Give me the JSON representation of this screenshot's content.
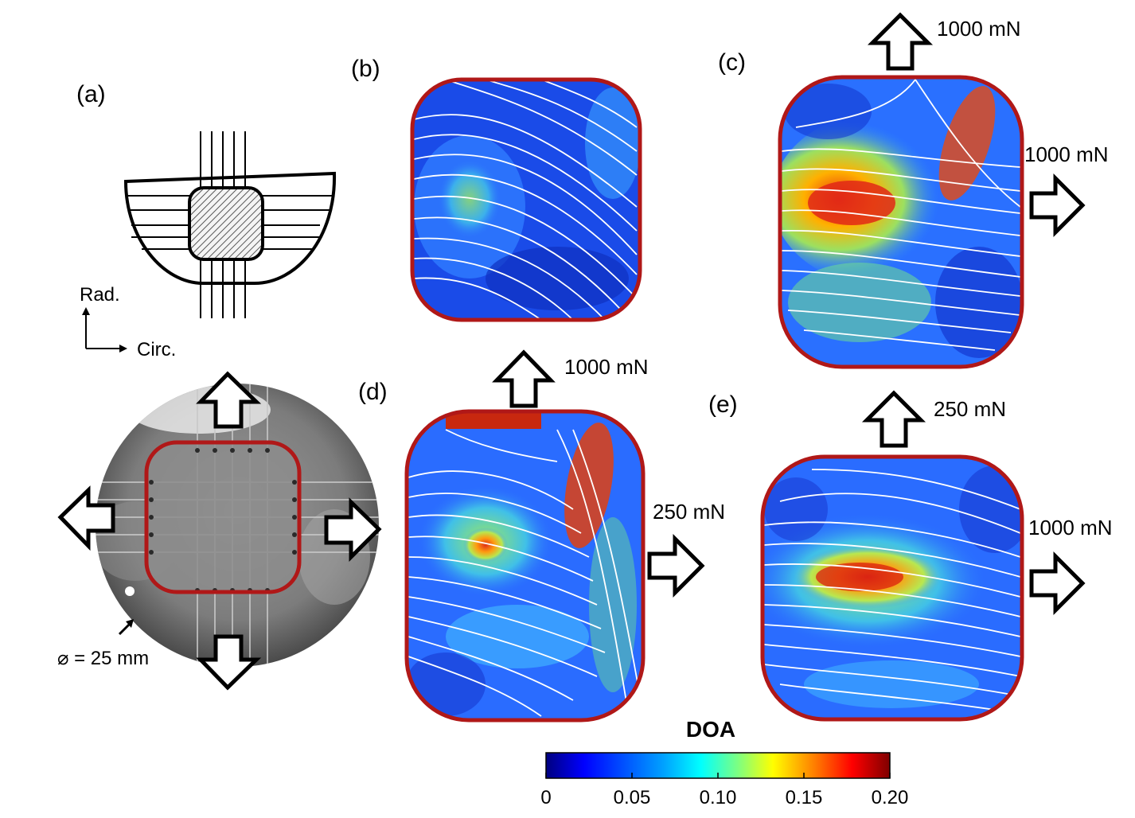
{
  "panels": {
    "a": {
      "label": "(a)",
      "axis_radial": "Rad.",
      "axis_circ": "Circ.",
      "diameter": "⌀ = 25 mm"
    },
    "b": {
      "label": "(b)"
    },
    "c": {
      "label": "(c)",
      "force_top": "1000 mN",
      "force_right": "1000 mN"
    },
    "d": {
      "label": "(d)",
      "force_top": "1000 mN",
      "force_right": "250 mN"
    },
    "e": {
      "label": "(e)",
      "force_top": "250 mN",
      "force_right": "1000 mN"
    }
  },
  "colorbar": {
    "title": "DOA",
    "ticks": [
      "0",
      "0.05",
      "0.10",
      "0.15",
      "0.20"
    ],
    "range": [
      0,
      0.2
    ],
    "colors": [
      "#00007f",
      "#0000ff",
      "#007fff",
      "#00ffff",
      "#7fff7f",
      "#ffff00",
      "#ff7f00",
      "#ff0000",
      "#7f0000"
    ]
  },
  "colors": {
    "outline": "#b01818",
    "fiber": "#ffffff"
  }
}
